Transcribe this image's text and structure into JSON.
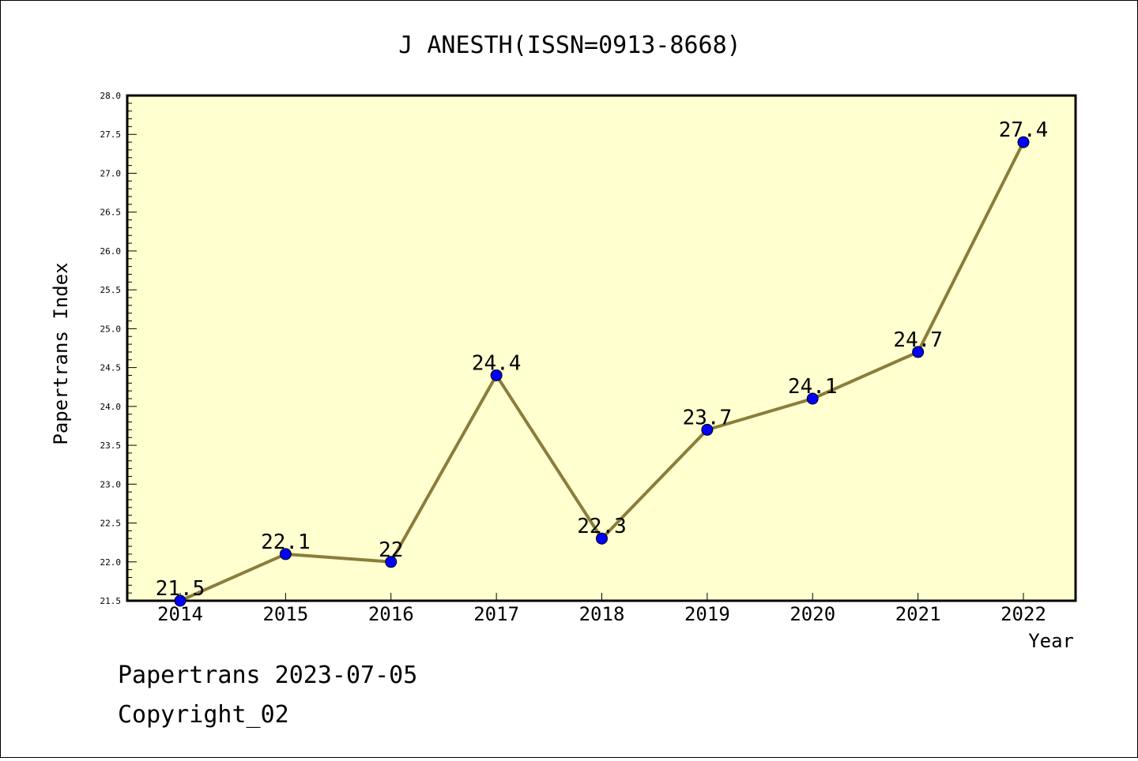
{
  "chart_data": {
    "type": "line",
    "title": "J ANESTH(ISSN=0913-8668)",
    "xlabel": "Year",
    "ylabel": "Papertrans Index",
    "x": [
      "2014",
      "2015",
      "2016",
      "2017",
      "2018",
      "2019",
      "2020",
      "2021",
      "2022"
    ],
    "values": [
      21.5,
      22.1,
      22,
      24.4,
      22.3,
      23.7,
      24.1,
      24.7,
      27.4
    ],
    "data_labels": [
      "21.5",
      "22.1",
      "22",
      "24.4",
      "22.3",
      "23.7",
      "24.1",
      "24.7",
      "27.4"
    ],
    "ylim": [
      21.5,
      28.0
    ],
    "y_ticks": [
      "21.5",
      "22.0",
      "22.5",
      "23.0",
      "23.5",
      "24.0",
      "24.5",
      "25.0",
      "25.5",
      "26.0",
      "26.5",
      "27.0",
      "27.5",
      "28.0"
    ],
    "grid": false,
    "colors": {
      "plot_background": "#ffffd0",
      "line": "#8b7d3a",
      "marker": "#0000ff"
    }
  },
  "footer": {
    "line1": "Papertrans 2023-07-05",
    "line2": "Copyright_02"
  }
}
